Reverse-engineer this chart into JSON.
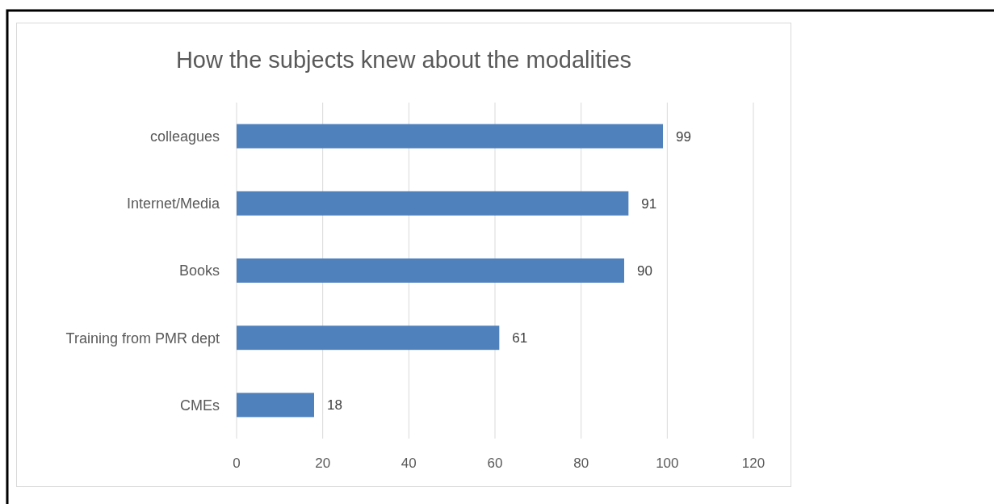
{
  "chart_data": {
    "type": "bar",
    "orientation": "horizontal",
    "title": "How the subjects knew about the modalities",
    "categories": [
      "colleagues",
      "Internet/Media",
      "Books",
      "Training from PMR dept",
      "CMEs"
    ],
    "values": [
      99,
      91,
      90,
      61,
      18
    ],
    "color": "#4f81bd",
    "xlim": [
      0,
      120
    ],
    "xticks": [
      0,
      20,
      40,
      60,
      80,
      100,
      120
    ],
    "grid": "x",
    "data_labels": true
  }
}
